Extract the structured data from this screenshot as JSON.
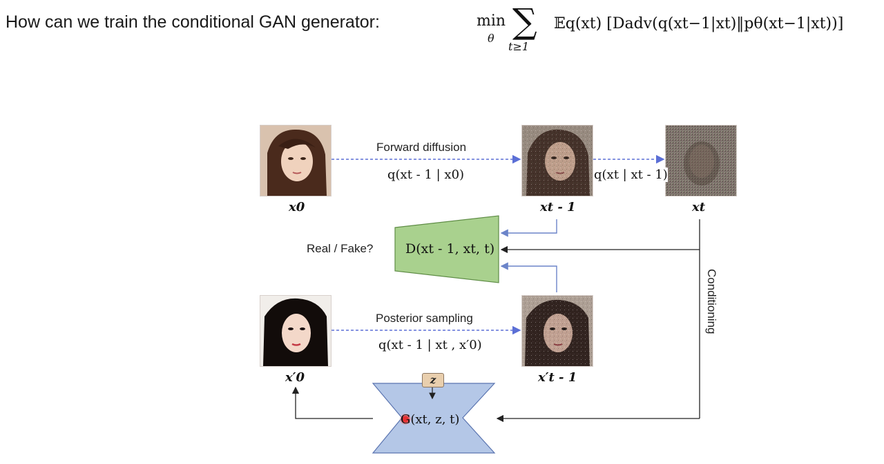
{
  "header": {
    "question": "How can we train the conditional GAN generator:",
    "equation": {
      "min": "min",
      "min_sub": "θ",
      "sum_sub": "t≥1",
      "body": "𝔼q(xt) [Dadv(q(xt−1|xt)‖pθ(xt−1|xt))]"
    }
  },
  "diagram": {
    "labels": {
      "x0": "x0",
      "xt_minus_1": "xt - 1",
      "xt": "xt",
      "x0_prime": "x′0",
      "xt_minus_1_prime": "x′t - 1",
      "z": "z"
    },
    "forward": {
      "title": "Forward diffusion",
      "formula": "q(xt - 1 | x0)"
    },
    "step": {
      "formula": "q(xt | xt - 1)"
    },
    "posterior": {
      "title": "Posterior sampling",
      "formula": "q(xt - 1 | xt , x′0)"
    },
    "discriminator": {
      "output": "Real / Fake?",
      "formula": "D(xt - 1, xt, t)"
    },
    "generator": {
      "formula": "G(xt, z, t)"
    },
    "conditioning": "Conditioning",
    "colors": {
      "disc_fill": "#a9d18e",
      "disc_stroke": "#5e8c45",
      "gen_fill": "#b4c7e7",
      "gen_stroke": "#5a74b0",
      "dashed_arrow": "#5b6fd6",
      "solid_arrow_blue": "#6b84c9",
      "solid_arrow_black": "#222222"
    }
  }
}
